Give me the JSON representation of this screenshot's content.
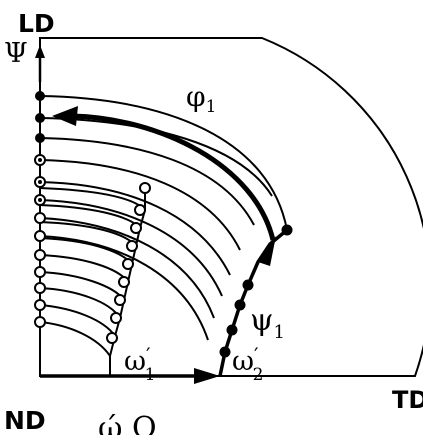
{
  "labels": {
    "ld": "LD",
    "nd": "ND",
    "td": "TD",
    "psi": "Ψ",
    "phi": "φ",
    "phi_sub": "1",
    "psi1": "ψ",
    "psi1_sub": "1",
    "omega": "ω",
    "omega1_sub": "1",
    "omega2_sub": "2",
    "prime": "′",
    "bottom_partial": "ώ   Q"
  },
  "colors": {
    "ink": "#000000",
    "background": "#ffffff"
  }
}
